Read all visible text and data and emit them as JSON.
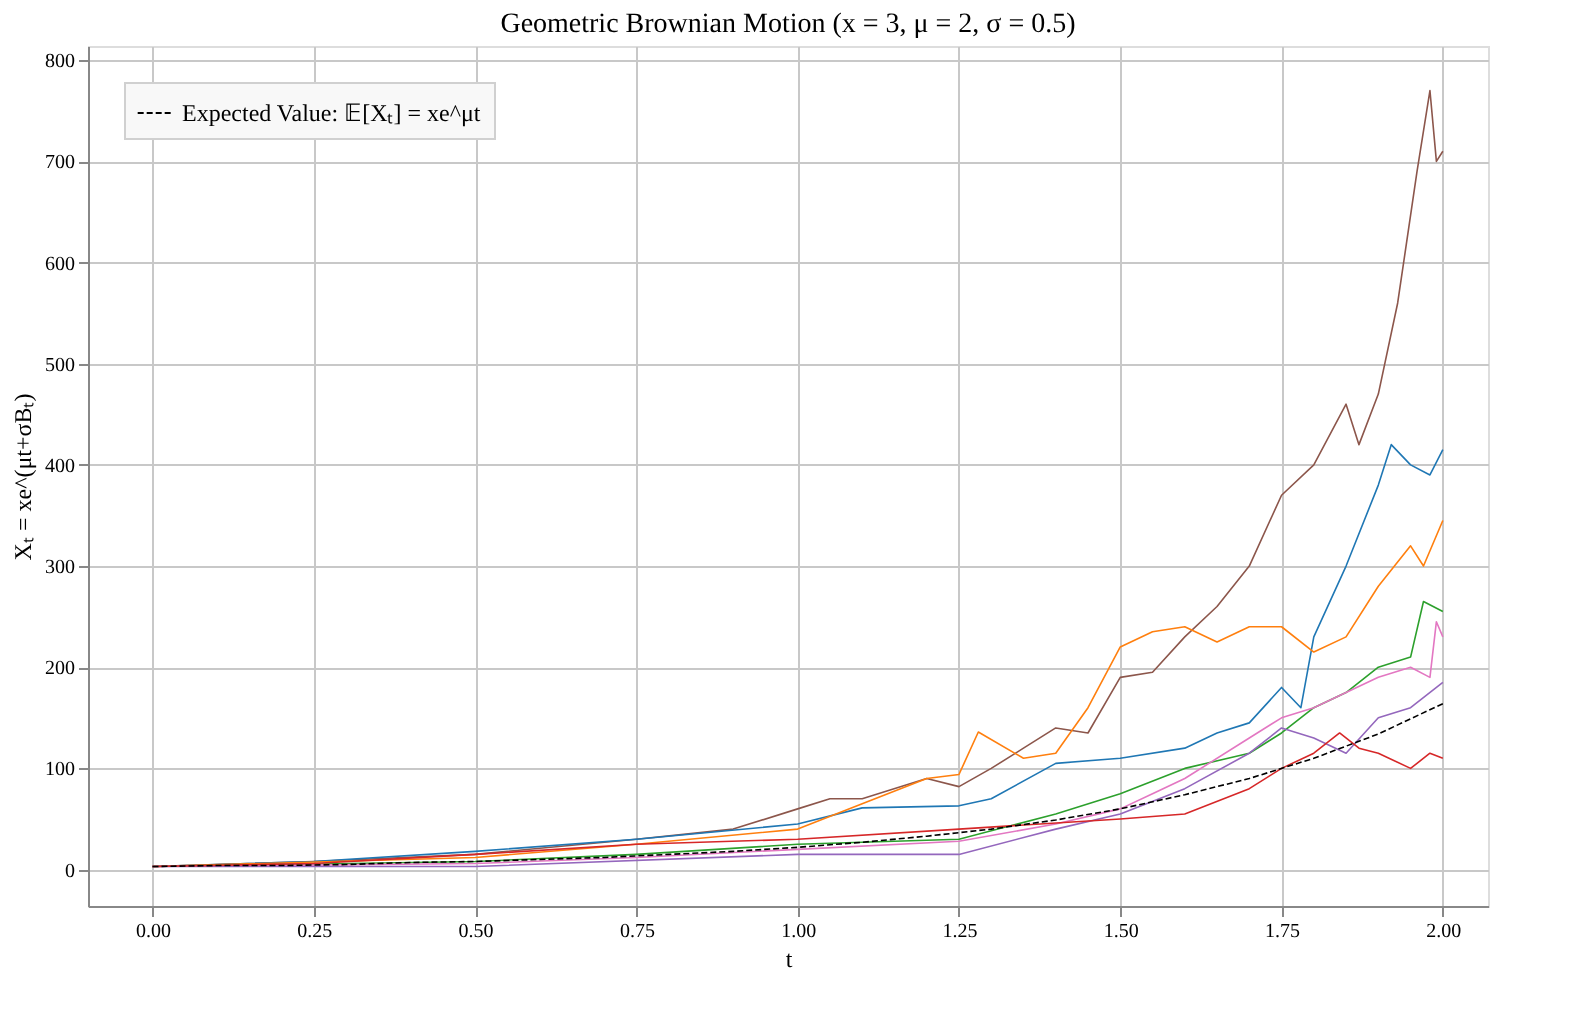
{
  "chart_data": {
    "type": "line",
    "title": "Geometric Brownian Motion (x = 3, μ = 2, σ = 0.5)",
    "xlabel": "t",
    "ylabel": "Xₜ = xe^(μt+σBₜ)",
    "xlim": [
      -0.1,
      2.07
    ],
    "ylim": [
      -36,
      814
    ],
    "xticks": [
      {
        "value": 0,
        "label": "0.00"
      },
      {
        "value": 0.25,
        "label": "0.25"
      },
      {
        "value": 0.5,
        "label": "0.50"
      },
      {
        "value": 0.75,
        "label": "0.75"
      },
      {
        "value": 1,
        "label": "1.00"
      },
      {
        "value": 1.25,
        "label": "1.25"
      },
      {
        "value": 1.5,
        "label": "1.50"
      },
      {
        "value": 1.75,
        "label": "1.75"
      },
      {
        "value": 2,
        "label": "2.00"
      }
    ],
    "yticks": [
      0,
      100,
      200,
      300,
      400,
      500,
      600,
      700,
      800
    ],
    "grid": true,
    "legend": "top left",
    "marker": "none",
    "series": [
      {
        "color": "#8c564b",
        "x": [
          0,
          0.25,
          0.5,
          0.75,
          0.9,
          1.0,
          1.05,
          1.1,
          1.2,
          1.25,
          1.3,
          1.35,
          1.4,
          1.45,
          1.5,
          1.55,
          1.6,
          1.65,
          1.7,
          1.75,
          1.8,
          1.85,
          1.87,
          1.9,
          1.93,
          1.96,
          1.98,
          1.99,
          2.0
        ],
        "values": [
          3,
          8,
          15,
          30,
          40,
          60,
          70,
          70,
          90,
          82,
          100,
          120,
          140,
          135,
          190,
          195,
          230,
          260,
          300,
          370,
          400,
          460,
          420,
          470,
          560,
          690,
          770,
          700,
          710
        ]
      },
      {
        "color": "#1f77b4",
        "x": [
          0,
          0.25,
          0.5,
          0.75,
          1.0,
          1.1,
          1.25,
          1.3,
          1.4,
          1.5,
          1.6,
          1.65,
          1.7,
          1.75,
          1.78,
          1.8,
          1.85,
          1.9,
          1.92,
          1.95,
          1.98,
          2.0
        ],
        "values": [
          3,
          8,
          18,
          30,
          45,
          61,
          63,
          70,
          105,
          110,
          120,
          135,
          145,
          180,
          160,
          230,
          300,
          380,
          420,
          400,
          390,
          415
        ]
      },
      {
        "color": "#ff7f0e",
        "x": [
          0,
          0.5,
          0.75,
          1.0,
          1.1,
          1.2,
          1.25,
          1.28,
          1.35,
          1.4,
          1.45,
          1.5,
          1.55,
          1.6,
          1.65,
          1.7,
          1.75,
          1.8,
          1.85,
          1.9,
          1.95,
          1.97,
          2.0
        ],
        "values": [
          3,
          12,
          25,
          40,
          65,
          90,
          94,
          136,
          110,
          115,
          160,
          220,
          235,
          240,
          225,
          240,
          240,
          215,
          230,
          280,
          320,
          300,
          345
        ]
      },
      {
        "color": "#2ca02c",
        "x": [
          0,
          0.5,
          0.75,
          1.0,
          1.25,
          1.4,
          1.5,
          1.6,
          1.7,
          1.75,
          1.8,
          1.85,
          1.9,
          1.95,
          1.97,
          2.0
        ],
        "values": [
          3,
          8,
          15,
          25,
          30,
          55,
          75,
          100,
          115,
          135,
          160,
          175,
          200,
          210,
          265,
          255
        ]
      },
      {
        "color": "#e377c2",
        "x": [
          0,
          0.5,
          0.75,
          1.0,
          1.25,
          1.4,
          1.5,
          1.55,
          1.6,
          1.7,
          1.75,
          1.8,
          1.85,
          1.9,
          1.95,
          1.98,
          1.99,
          2.0
        ],
        "values": [
          3,
          6,
          12,
          20,
          28,
          45,
          60,
          75,
          90,
          130,
          150,
          160,
          175,
          190,
          200,
          190,
          245,
          230
        ]
      },
      {
        "color": "#9467bd",
        "x": [
          0,
          0.5,
          1.0,
          1.25,
          1.4,
          1.5,
          1.6,
          1.7,
          1.75,
          1.8,
          1.85,
          1.9,
          1.95,
          2.0
        ],
        "values": [
          3,
          3,
          15,
          15,
          40,
          55,
          80,
          115,
          140,
          130,
          115,
          150,
          160,
          185
        ]
      },
      {
        "color": "#d62728",
        "x": [
          0,
          0.25,
          0.5,
          0.75,
          1.0,
          1.25,
          1.5,
          1.6,
          1.7,
          1.75,
          1.8,
          1.84,
          1.87,
          1.9,
          1.95,
          1.98,
          2.0
        ],
        "values": [
          3,
          6,
          15,
          25,
          30,
          40,
          50,
          55,
          80,
          100,
          115,
          135,
          120,
          115,
          100,
          115,
          110
        ]
      },
      {
        "name": "Expected Value: 𝔼[Xₜ] = xe^μt",
        "color": "#000000",
        "line_style": "dashed",
        "x": [
          0,
          0.1,
          0.2,
          0.3,
          0.4,
          0.5,
          0.6,
          0.7,
          0.8,
          0.9,
          1.0,
          1.1,
          1.2,
          1.3,
          1.4,
          1.5,
          1.6,
          1.7,
          1.8,
          1.9,
          2.0
        ],
        "values": [
          3,
          4,
          4,
          5,
          7,
          8,
          10,
          12,
          15,
          18,
          22,
          27,
          33,
          40,
          49,
          60,
          74,
          90,
          110,
          134,
          164
        ]
      }
    ]
  }
}
